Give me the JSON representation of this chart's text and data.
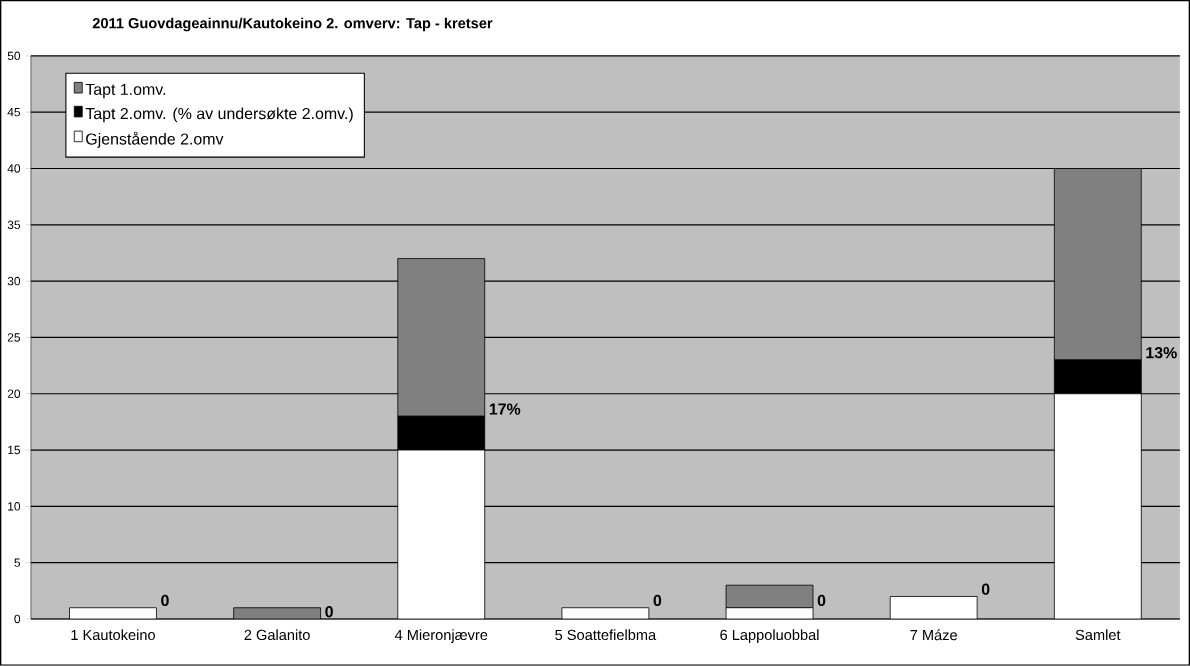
{
  "chart_data": {
    "type": "bar",
    "title": "2011 Guovdageainnu/Kautokeino 2. omverv: Tap - kretser",
    "categories": [
      "1 Kautokeino",
      "2 Galanito",
      "4 Mieronjævre",
      "5 Soattefielbma",
      "6 Lappoluobbal",
      "7 Máze",
      "Samlet"
    ],
    "stacked": true,
    "series": [
      {
        "name": "Gjenstående 2.omv",
        "color": "#ffffff",
        "values": [
          1,
          0,
          15,
          1,
          1,
          2,
          20
        ]
      },
      {
        "name": "Tapt 2.omv. (% av undersøkte 2.omv.)",
        "color": "#000000",
        "values": [
          0,
          0,
          3,
          0,
          0,
          0,
          3
        ]
      },
      {
        "name": "Tapt 1.omv.",
        "color": "#808080",
        "values": [
          0,
          1,
          14,
          0,
          2,
          0,
          17
        ]
      }
    ],
    "ylim": [
      0,
      50
    ],
    "yticks": [
      0,
      5,
      10,
      15,
      20,
      25,
      30,
      35,
      40,
      45,
      50
    ],
    "grid": "y",
    "legend": "top left",
    "annotations": [
      "0",
      "0",
      "17%",
      "0",
      "0",
      "0",
      "13%"
    ]
  }
}
